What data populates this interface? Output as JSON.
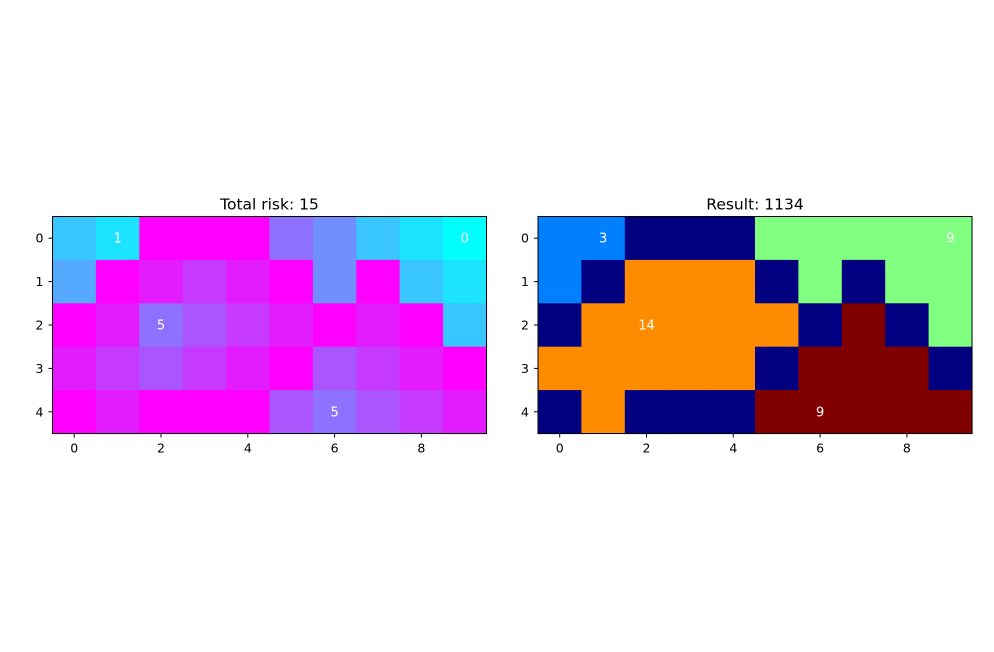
{
  "chart_data": [
    {
      "type": "heatmap",
      "title": "Total risk: 15",
      "colormap": "cool",
      "rows": 5,
      "cols": 10,
      "x_ticks": [
        "0",
        "2",
        "4",
        "6",
        "8"
      ],
      "y_ticks": [
        "0",
        "1",
        "2",
        "3",
        "4"
      ],
      "values": [
        [
          2,
          1,
          9,
          9,
          9,
          5,
          4,
          2,
          1,
          0
        ],
        [
          3,
          9,
          8,
          7,
          8,
          9,
          4,
          9,
          2,
          1
        ],
        [
          9,
          8,
          5,
          6,
          7,
          8,
          9,
          8,
          9,
          2
        ],
        [
          8,
          7,
          6,
          7,
          8,
          9,
          6,
          7,
          8,
          9
        ],
        [
          9,
          8,
          9,
          9,
          9,
          6,
          5,
          6,
          7,
          8
        ]
      ],
      "annotations": [
        {
          "row": 0,
          "col": 1,
          "text": "1"
        },
        {
          "row": 0,
          "col": 9,
          "text": "0"
        },
        {
          "row": 2,
          "col": 2,
          "text": "5"
        },
        {
          "row": 4,
          "col": 6,
          "text": "5"
        }
      ]
    },
    {
      "type": "heatmap",
      "title": "Result: 1134",
      "colormap": "categorical",
      "rows": 5,
      "cols": 10,
      "x_ticks": [
        "0",
        "2",
        "4",
        "6",
        "8"
      ],
      "y_ticks": [
        "0",
        "1",
        "2",
        "3",
        "4"
      ],
      "category_colors": {
        "0": "#000080",
        "1": "#0080ff",
        "2": "#ff8c00",
        "3": "#80ff80",
        "4": "#800000"
      },
      "values": [
        [
          1,
          1,
          0,
          0,
          0,
          3,
          3,
          3,
          3,
          3
        ],
        [
          1,
          0,
          2,
          2,
          2,
          0,
          3,
          0,
          3,
          3
        ],
        [
          0,
          2,
          2,
          2,
          2,
          2,
          0,
          4,
          0,
          3
        ],
        [
          2,
          2,
          2,
          2,
          2,
          0,
          4,
          4,
          4,
          0
        ],
        [
          0,
          2,
          0,
          0,
          0,
          4,
          4,
          4,
          4,
          4
        ]
      ],
      "annotations": [
        {
          "row": 0,
          "col": 1,
          "text": "3"
        },
        {
          "row": 0,
          "col": 9,
          "text": "9"
        },
        {
          "row": 2,
          "col": 2,
          "text": "14"
        },
        {
          "row": 4,
          "col": 6,
          "text": "9"
        }
      ]
    }
  ],
  "colors": {
    "annotation_text": "#ffffff",
    "axis": "#000000",
    "background": "#ffffff"
  }
}
